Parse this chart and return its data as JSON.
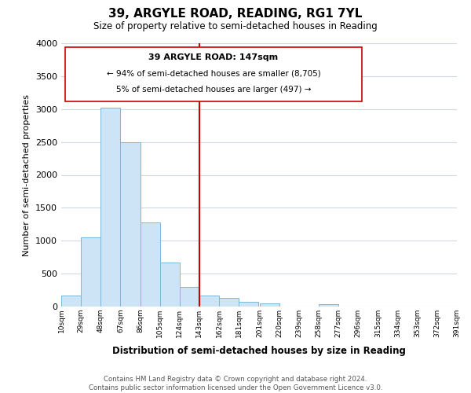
{
  "title": "39, ARGYLE ROAD, READING, RG1 7YL",
  "subtitle": "Size of property relative to semi-detached houses in Reading",
  "xlabel": "Distribution of semi-detached houses by size in Reading",
  "ylabel": "Number of semi-detached properties",
  "bar_color": "#cce4f5",
  "bar_edge_color": "#7ab8d9",
  "background_color": "#ffffff",
  "grid_color": "#d0d8e8",
  "annotation_title": "39 ARGYLE ROAD: 147sqm",
  "annotation_line1": "← 94% of semi-detached houses are smaller (8,705)",
  "annotation_line2": "5% of semi-detached houses are larger (497) →",
  "vline_color": "#cc0000",
  "bin_edges": [
    10,
    29,
    48,
    67,
    86,
    105,
    124,
    143,
    162,
    181,
    201,
    220,
    239,
    258,
    277,
    296,
    315,
    334,
    353,
    372,
    391
  ],
  "bin_heights": [
    170,
    1050,
    3020,
    2500,
    1280,
    670,
    300,
    170,
    130,
    70,
    50,
    0,
    0,
    30,
    0,
    0,
    0,
    0,
    0,
    0
  ],
  "ylim": [
    0,
    4000
  ],
  "tick_labels": [
    "10sqm",
    "29sqm",
    "48sqm",
    "67sqm",
    "86sqm",
    "105sqm",
    "124sqm",
    "143sqm",
    "162sqm",
    "181sqm",
    "201sqm",
    "220sqm",
    "239sqm",
    "258sqm",
    "277sqm",
    "296sqm",
    "315sqm",
    "334sqm",
    "353sqm",
    "372sqm",
    "391sqm"
  ],
  "footer_line1": "Contains HM Land Registry data © Crown copyright and database right 2024.",
  "footer_line2": "Contains public sector information licensed under the Open Government Licence v3.0."
}
